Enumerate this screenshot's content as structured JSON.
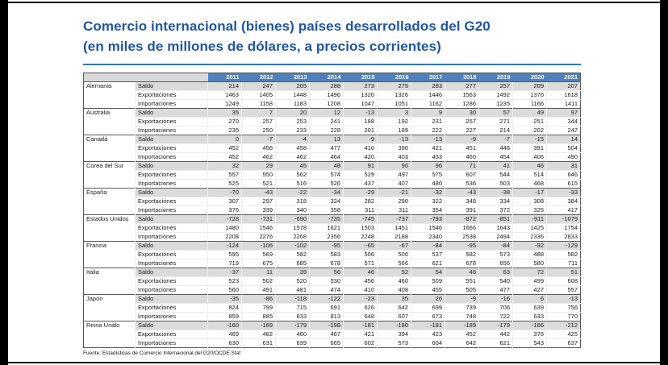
{
  "title": {
    "line1": "Comercio internacional (bienes) países desarrollados del G20",
    "line2": "(en miles de millones de dólares, a precios corrientes)"
  },
  "footer": "Fuente: Estadísticas de Comercio Internacional del G20/OCDE.Stat",
  "colors": {
    "title_blue": "#1F55A4",
    "header_bg": "#4F81BD",
    "saldo_row_bg": "#DBDBDB"
  },
  "chart_data": {
    "type": "table",
    "title": "Comercio internacional (bienes) países desarrollados del G20 (en miles de millones de dólares, a precios corrientes)",
    "years": [
      "2011",
      "2012",
      "2013",
      "2014",
      "2015",
      "2016",
      "2017",
      "2018",
      "2019",
      "2020",
      "2021"
    ],
    "row_types": [
      "Saldo",
      "Exportaciones",
      "Importaciones"
    ],
    "countries": [
      {
        "name": "Alemania",
        "rows": [
          [
            214,
            247,
            265,
            288,
            273,
            275,
            283,
            277,
            257,
            209,
            207
          ],
          [
            1463,
            1405,
            1448,
            1496,
            1320,
            1326,
            1446,
            1563,
            1492,
            1376,
            1618
          ],
          [
            1249,
            1158,
            1183,
            1208,
            1047,
            1051,
            1162,
            1286,
            1235,
            1166,
            1411
          ]
        ]
      },
      {
        "name": "Australia",
        "rows": [
          [
            35,
            7,
            20,
            12,
            -13,
            3,
            9,
            30,
            57,
            49,
            97
          ],
          [
            270,
            257,
            253,
            241,
            188,
            192,
            231,
            257,
            271,
            251,
            344
          ],
          [
            235,
            250,
            233,
            228,
            201,
            189,
            222,
            227,
            214,
            202,
            247
          ]
        ]
      },
      {
        "name": "Canadá",
        "rows": [
          [
            0,
            -7,
            -4,
            13,
            -9,
            -13,
            -13,
            -9,
            -7,
            -15,
            14
          ],
          [
            452,
            456,
            458,
            477,
            410,
            390,
            421,
            451,
            446,
            391,
            504
          ],
          [
            452,
            462,
            462,
            464,
            420,
            403,
            433,
            460,
            454,
            406,
            490
          ]
        ]
      },
      {
        "name": "Corea del Sur",
        "rows": [
          [
            32,
            29,
            45,
            48,
            91,
            90,
            96,
            71,
            41,
            46,
            31
          ],
          [
            557,
            550,
            562,
            574,
            529,
            497,
            575,
            607,
            544,
            514,
            646
          ],
          [
            525,
            521,
            516,
            526,
            437,
            407,
            480,
            536,
            503,
            468,
            615
          ]
        ]
      },
      {
        "name": "España",
        "rows": [
          [
            -70,
            -43,
            -22,
            -34,
            -29,
            -21,
            -32,
            -43,
            -38,
            -17,
            -33
          ],
          [
            307,
            297,
            318,
            324,
            282,
            290,
            322,
            348,
            334,
            308,
            384
          ],
          [
            376,
            339,
            340,
            358,
            311,
            311,
            354,
            391,
            372,
            325,
            417
          ]
        ]
      },
      {
        "name": "Estados Unidos",
        "rows": [
          [
            -728,
            -731,
            -690,
            -735,
            -745,
            -737,
            -793,
            -872,
            -851,
            -911,
            -1079
          ],
          [
            1480,
            1546,
            1578,
            1621,
            1503,
            1451,
            1546,
            1666,
            1643,
            1425,
            1754
          ],
          [
            2208,
            2276,
            2268,
            2356,
            2248,
            2188,
            2340,
            2538,
            2494,
            2336,
            2833
          ]
        ]
      },
      {
        "name": "Francia",
        "rows": [
          [
            -124,
            -106,
            -102,
            -95,
            -65,
            -67,
            -84,
            -95,
            -84,
            -92,
            -129
          ],
          [
            595,
            569,
            582,
            583,
            506,
            500,
            537,
            582,
            573,
            488,
            582
          ],
          [
            719,
            675,
            685,
            678,
            571,
            566,
            621,
            678,
            656,
            580,
            711
          ]
        ]
      },
      {
        "name": "Italia",
        "rows": [
          [
            -37,
            11,
            39,
            56,
            46,
            52,
            54,
            46,
            63,
            72,
            51
          ],
          [
            523,
            502,
            520,
            530,
            456,
            460,
            509,
            551,
            540,
            499,
            608
          ],
          [
            560,
            491,
            481,
            474,
            410,
            408,
            455,
            505,
            477,
            427,
            557
          ]
        ]
      },
      {
        "name": "Japón",
        "rows": [
          [
            -35,
            -86,
            -118,
            -122,
            -23,
            35,
            26,
            -9,
            -16,
            6,
            -13
          ],
          [
            824,
            799,
            715,
            691,
            626,
            642,
            699,
            739,
            706,
            639,
            756
          ],
          [
            859,
            885,
            833,
            813,
            648,
            607,
            673,
            748,
            722,
            633,
            770
          ]
        ]
      },
      {
        "name": "Reino Unido",
        "rows": [
          [
            -160,
            -169,
            -179,
            -198,
            -181,
            -180,
            -181,
            -189,
            -179,
            -166,
            -212
          ],
          [
            469,
            462,
            460,
            467,
            421,
            394,
            423,
            452,
            442,
            376,
            425
          ],
          [
            630,
            631,
            639,
            665,
            602,
            573,
            604,
            642,
            621,
            543,
            637
          ]
        ]
      }
    ]
  }
}
